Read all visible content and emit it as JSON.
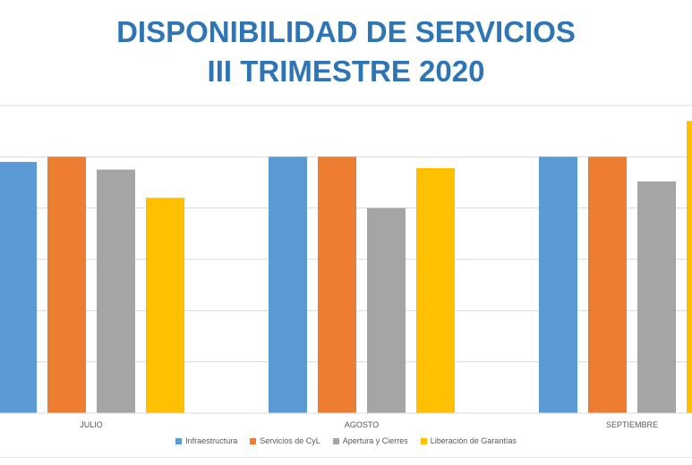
{
  "chart_data": {
    "type": "bar",
    "title_lines": [
      "DISPONIBILIDAD DE SERVICIOS",
      "III TRIMESTRE 2020"
    ],
    "categories": [
      "JULIO",
      "AGOSTO",
      "SEPTIEMBRE"
    ],
    "series": [
      {
        "name": "Infraestructura",
        "color": "#5b9bd5",
        "values": [
          99.9,
          100.0,
          100.0
        ]
      },
      {
        "name": "Servicios de CyL",
        "color": "#ed7d31",
        "values": [
          100.0,
          100.0,
          100.0
        ]
      },
      {
        "name": "Apertura y Cierres",
        "color": "#a5a5a5",
        "values": [
          99.75,
          99.0,
          99.52
        ]
      },
      {
        "name": "Liberación de Garantías",
        "color": "#ffc000",
        "values": [
          99.2,
          99.78,
          100.7
        ]
      }
    ],
    "ylim": [
      95.0,
      101.0
    ],
    "grid": true,
    "legend_position": "bottom"
  }
}
